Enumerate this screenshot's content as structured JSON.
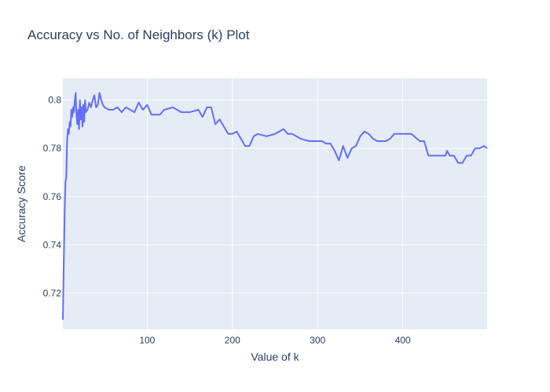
{
  "chart_data": {
    "type": "line",
    "title": "Accuracy vs No. of Neighbors (k) Plot",
    "xlabel": "Value of k",
    "ylabel": "Accuracy Score",
    "xlim": [
      1,
      499
    ],
    "ylim": [
      0.705,
      0.809
    ],
    "xticks": [
      100,
      200,
      300,
      400
    ],
    "yticks": [
      0.72,
      0.74,
      0.76,
      0.78,
      0.8
    ],
    "ytick_labels": [
      "0.72",
      "0.74",
      "0.76",
      "0.78",
      "0.8"
    ],
    "grid": true,
    "line_color": "#636efa",
    "plot_bg": "#e5ecf6",
    "series": [
      {
        "x": [
          1,
          2,
          3,
          4,
          5,
          6,
          7,
          8,
          9,
          10,
          11,
          12,
          13,
          14,
          15,
          16,
          17,
          18,
          19,
          20,
          21,
          22,
          23,
          24,
          25,
          26,
          27,
          28,
          30,
          32,
          34,
          36,
          38,
          40,
          42,
          44,
          46,
          48,
          50,
          55,
          60,
          65,
          70,
          75,
          80,
          85,
          90,
          95,
          100,
          105,
          110,
          115,
          120,
          130,
          140,
          150,
          160,
          165,
          170,
          175,
          180,
          185,
          190,
          195,
          200,
          205,
          210,
          215,
          220,
          225,
          230,
          240,
          250,
          255,
          260,
          265,
          270,
          275,
          280,
          290,
          300,
          305,
          310,
          315,
          320,
          325,
          330,
          335,
          340,
          345,
          350,
          355,
          360,
          365,
          370,
          375,
          380,
          385,
          390,
          395,
          400,
          410,
          420,
          425,
          430,
          440,
          450,
          452,
          455,
          460,
          465,
          470,
          475,
          480,
          485,
          490,
          495,
          499
        ],
        "y": [
          0.709,
          0.731,
          0.752,
          0.766,
          0.768,
          0.783,
          0.788,
          0.786,
          0.791,
          0.789,
          0.796,
          0.793,
          0.797,
          0.795,
          0.8,
          0.803,
          0.794,
          0.79,
          0.796,
          0.788,
          0.8,
          0.792,
          0.797,
          0.789,
          0.798,
          0.791,
          0.8,
          0.795,
          0.796,
          0.799,
          0.797,
          0.8,
          0.802,
          0.797,
          0.798,
          0.803,
          0.8,
          0.798,
          0.797,
          0.796,
          0.796,
          0.797,
          0.795,
          0.797,
          0.796,
          0.795,
          0.799,
          0.796,
          0.798,
          0.794,
          0.794,
          0.794,
          0.796,
          0.797,
          0.795,
          0.795,
          0.796,
          0.793,
          0.797,
          0.797,
          0.79,
          0.792,
          0.789,
          0.786,
          0.786,
          0.787,
          0.784,
          0.781,
          0.781,
          0.785,
          0.786,
          0.785,
          0.786,
          0.787,
          0.788,
          0.786,
          0.786,
          0.785,
          0.784,
          0.783,
          0.783,
          0.783,
          0.782,
          0.782,
          0.779,
          0.775,
          0.781,
          0.776,
          0.78,
          0.781,
          0.785,
          0.787,
          0.786,
          0.784,
          0.783,
          0.783,
          0.783,
          0.784,
          0.786,
          0.786,
          0.786,
          0.786,
          0.783,
          0.783,
          0.777,
          0.777,
          0.777,
          0.779,
          0.777,
          0.777,
          0.774,
          0.774,
          0.777,
          0.777,
          0.78,
          0.78,
          0.781,
          0.78
        ]
      }
    ]
  }
}
